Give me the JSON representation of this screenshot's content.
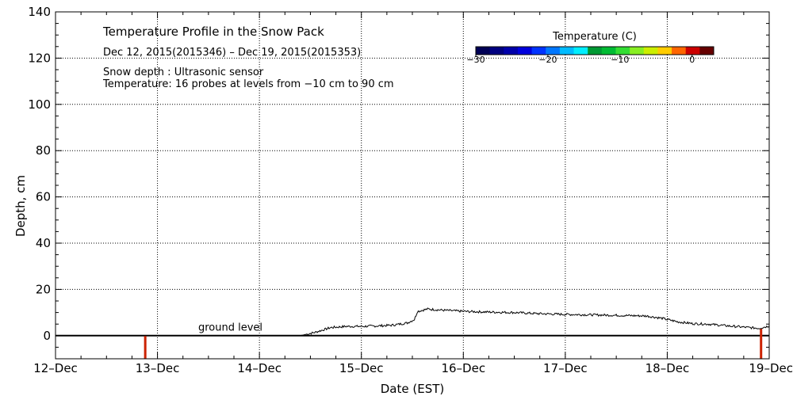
{
  "chart_data": {
    "type": "line",
    "title": "Temperature Profile in the Snow Pack",
    "subtitle": "Dec 12, 2015(2015346) – Dec 19, 2015(2015353)",
    "notes": [
      "Snow depth : Ultrasonic sensor",
      "Temperature: 16 probes at levels from −10 cm to 90 cm"
    ],
    "xlabel": "Date (EST)",
    "ylabel": "Depth, cm",
    "xlim": [
      0,
      7
    ],
    "ylim": [
      -10,
      140
    ],
    "x_tick_labels": [
      "12–Dec",
      "13–Dec",
      "14–Dec",
      "15–Dec",
      "16–Dec",
      "17–Dec",
      "18–Dec",
      "19–Dec"
    ],
    "y_ticks": [
      0,
      20,
      40,
      60,
      80,
      100,
      120,
      140
    ],
    "y_tick_labels": [
      "0",
      "20",
      "40",
      "60",
      "80",
      "100",
      "120",
      "140"
    ],
    "grid": true,
    "annotations": [
      {
        "text": "ground level",
        "x": 1.4,
        "y": 1.5
      }
    ],
    "ground_level": 0,
    "series": [
      {
        "name": "Snow depth",
        "color": "#000000",
        "points": [
          [
            0.0,
            0.0
          ],
          [
            2.4,
            0.0
          ],
          [
            2.55,
            1.5
          ],
          [
            2.7,
            3.5
          ],
          [
            2.85,
            4.0
          ],
          [
            3.0,
            4.0
          ],
          [
            3.15,
            4.2
          ],
          [
            3.3,
            4.5
          ],
          [
            3.45,
            5.5
          ],
          [
            3.52,
            7.0
          ],
          [
            3.55,
            10.5
          ],
          [
            3.65,
            11.5
          ],
          [
            3.8,
            11.0
          ],
          [
            4.0,
            10.5
          ],
          [
            4.25,
            10.2
          ],
          [
            4.5,
            10.0
          ],
          [
            4.75,
            9.5
          ],
          [
            5.0,
            9.2
          ],
          [
            5.25,
            9.0
          ],
          [
            5.5,
            8.8
          ],
          [
            5.8,
            8.5
          ],
          [
            5.95,
            7.5
          ],
          [
            6.1,
            6.0
          ],
          [
            6.25,
            5.2
          ],
          [
            6.4,
            5.0
          ],
          [
            6.6,
            4.2
          ],
          [
            6.8,
            3.5
          ],
          [
            6.9,
            3.2
          ],
          [
            7.0,
            4.2
          ]
        ]
      },
      {
        "name": "Probe temperature bars",
        "values": [
          {
            "x": 0.88,
            "y_from": -10,
            "y_to": 0,
            "temperature": 0
          },
          {
            "x": 6.92,
            "y_from": -10,
            "y_to": 3,
            "temperature": 0
          }
        ]
      }
    ],
    "colorbar": {
      "title": "Temperature (C)",
      "range": [
        -30,
        3
      ],
      "ticks": [
        -30,
        -20,
        -10,
        0
      ],
      "tick_labels": [
        "−30",
        "−20",
        "−10",
        "0"
      ],
      "colors": [
        "#000055",
        "#000080",
        "#0000aa",
        "#0000dd",
        "#0033ff",
        "#0077ff",
        "#00bbff",
        "#00eeff",
        "#009933",
        "#00bb33",
        "#33dd33",
        "#88ee22",
        "#ccee00",
        "#ffcc00",
        "#ff6600",
        "#cc0000",
        "#660000"
      ]
    }
  }
}
